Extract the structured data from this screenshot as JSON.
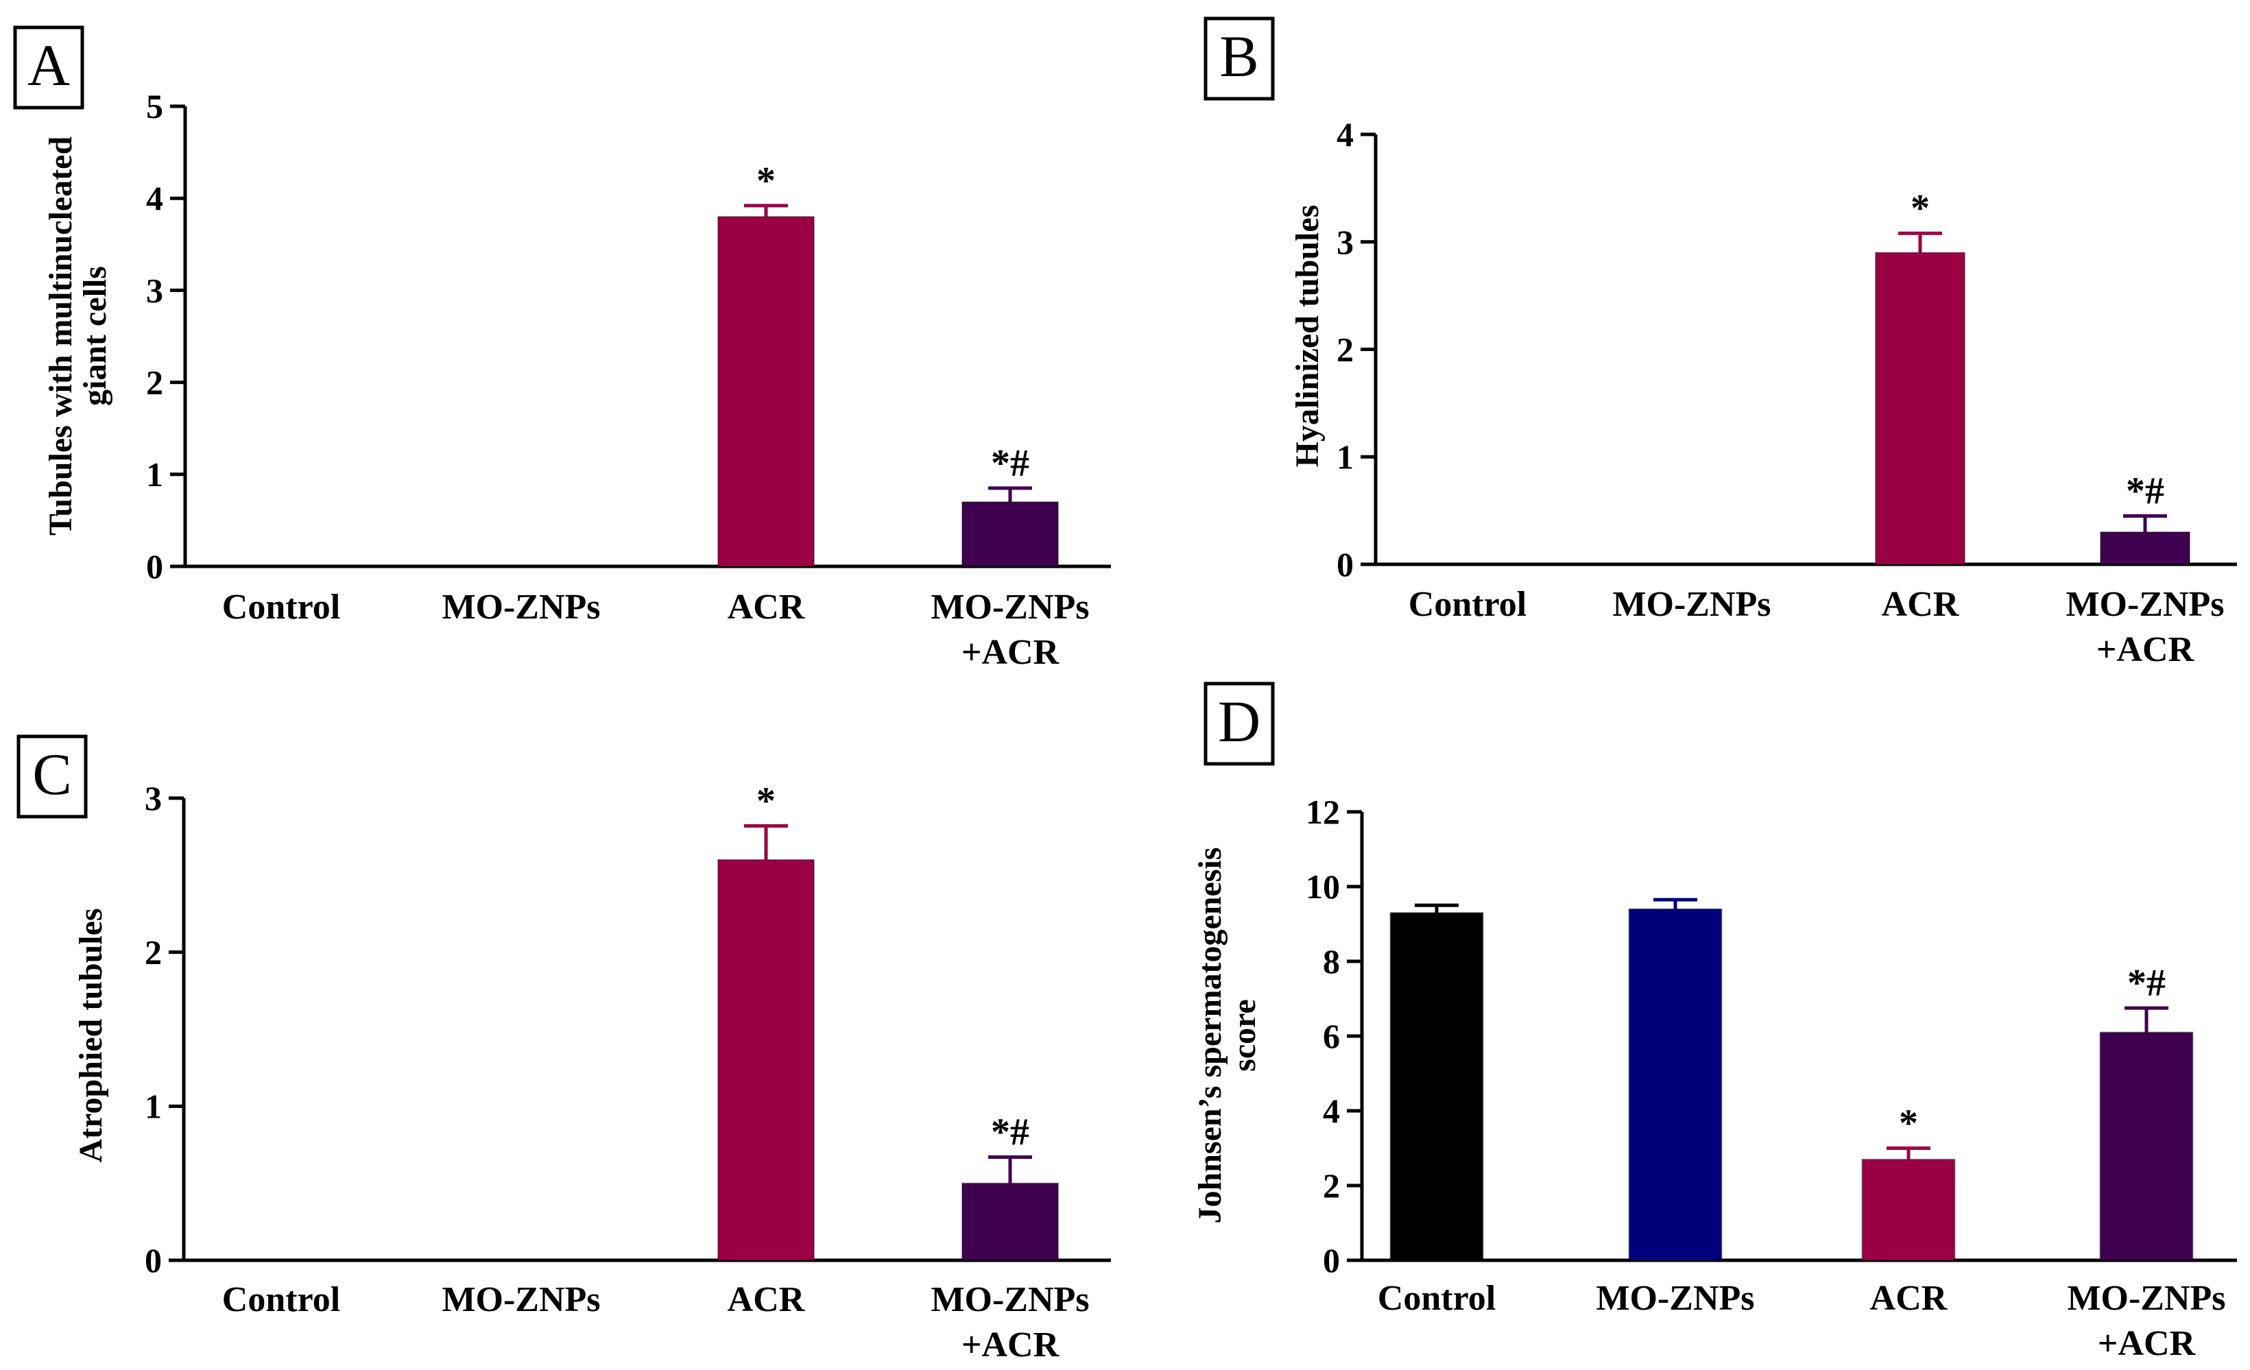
{
  "chart_data": [
    {
      "type": "bar",
      "panel": "A",
      "ylabel_lines": [
        "Tubules with multinucleated",
        "giant cells"
      ],
      "categories": [
        "Control",
        "MO-ZNPs",
        "ACR",
        "MO-ZNPs\n+ACR"
      ],
      "values": [
        0,
        0,
        3.8,
        0.7
      ],
      "errors": [
        0,
        0,
        0.12,
        0.15
      ],
      "annotations": [
        "",
        "",
        "*",
        "*#"
      ],
      "ylim": [
        0,
        5
      ],
      "yticks": [
        0,
        1,
        2,
        3,
        4,
        5
      ],
      "colors": [
        "#000000",
        "#00007a",
        "#9b0044",
        "#3f0050"
      ]
    },
    {
      "type": "bar",
      "panel": "B",
      "ylabel_lines": [
        "Hyalinized tubules"
      ],
      "categories": [
        "Control",
        "MO-ZNPs",
        "ACR",
        "MO-ZNPs\n+ACR"
      ],
      "values": [
        0,
        0,
        2.9,
        0.3
      ],
      "errors": [
        0,
        0,
        0.18,
        0.15
      ],
      "annotations": [
        "",
        "",
        "*",
        "*#"
      ],
      "ylim": [
        0,
        4
      ],
      "yticks": [
        0,
        1,
        2,
        3,
        4
      ],
      "colors": [
        "#000000",
        "#00007a",
        "#9b0044",
        "#3f0050"
      ]
    },
    {
      "type": "bar",
      "panel": "C",
      "ylabel_lines": [
        "Atrophied tubules"
      ],
      "categories": [
        "Control",
        "MO-ZNPs",
        "ACR",
        "MO-ZNPs\n+ACR"
      ],
      "values": [
        0,
        0,
        2.6,
        0.5
      ],
      "errors": [
        0,
        0,
        0.22,
        0.17
      ],
      "annotations": [
        "",
        "",
        "*",
        "*#"
      ],
      "ylim": [
        0,
        3
      ],
      "yticks": [
        0,
        1,
        2,
        3
      ],
      "colors": [
        "#000000",
        "#00007a",
        "#9b0044",
        "#3f0050"
      ]
    },
    {
      "type": "bar",
      "panel": "D",
      "ylabel_lines": [
        "Johnsen’s spermatogenesis",
        "score"
      ],
      "categories": [
        "Control",
        "MO-ZNPs",
        "ACR",
        "MO-ZNPs\n+ACR"
      ],
      "values": [
        9.3,
        9.4,
        2.7,
        6.1
      ],
      "errors": [
        0.2,
        0.25,
        0.3,
        0.65
      ],
      "annotations": [
        "",
        "",
        "*",
        "*#"
      ],
      "ylim": [
        0,
        12
      ],
      "yticks": [
        0,
        2,
        4,
        6,
        8,
        10,
        12
      ],
      "colors": [
        "#000000",
        "#00007a",
        "#9b0044",
        "#3f0050"
      ]
    }
  ]
}
